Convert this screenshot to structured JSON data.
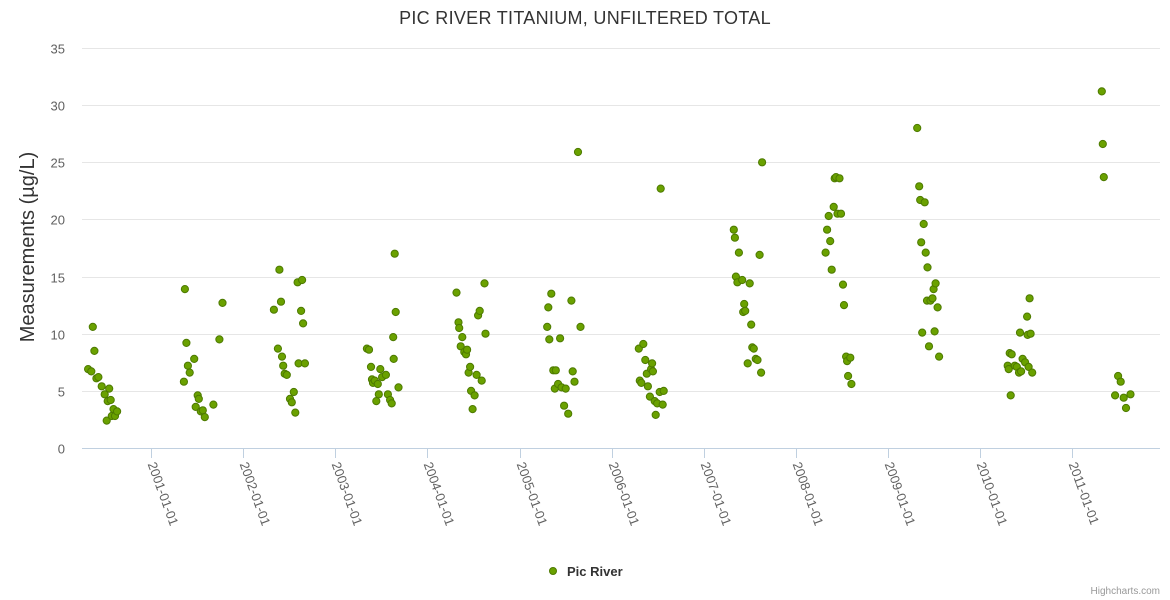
{
  "chart_data": {
    "type": "scatter",
    "title": "PIC RIVER TITANIUM, UNFILTERED TOTAL",
    "ylabel": "Measurements (µg/L)",
    "xlabel": "",
    "ylim": [
      0,
      35
    ],
    "yticks": [
      0,
      5,
      10,
      15,
      20,
      25,
      30,
      35
    ],
    "xlim": [
      "2000-04-01",
      "2011-12-15"
    ],
    "xticks": [
      "2001-01-01",
      "2002-01-01",
      "2003-01-01",
      "2004-01-01",
      "2005-01-01",
      "2006-01-01",
      "2007-01-01",
      "2008-01-01",
      "2009-01-01",
      "2010-01-01",
      "2011-01-01"
    ],
    "grid": "horizontal",
    "legend_position": "bottom-center",
    "series": [
      {
        "name": "Pic River",
        "color": "#6aa100",
        "stroke": "#4d7a00",
        "points": [
          [
            "2000-04-25",
            6.9
          ],
          [
            "2000-05-08",
            6.7
          ],
          [
            "2000-05-14",
            10.6
          ],
          [
            "2000-05-20",
            8.5
          ],
          [
            "2000-05-28",
            6.1
          ],
          [
            "2000-06-05",
            6.2
          ],
          [
            "2000-06-18",
            5.4
          ],
          [
            "2000-06-30",
            4.7
          ],
          [
            "2000-07-08",
            2.4
          ],
          [
            "2000-07-12",
            4.1
          ],
          [
            "2000-07-18",
            5.2
          ],
          [
            "2000-07-24",
            4.2
          ],
          [
            "2000-07-28",
            2.8
          ],
          [
            "2000-08-04",
            3.4
          ],
          [
            "2000-08-10",
            2.8
          ],
          [
            "2000-08-18",
            3.2
          ],
          [
            "2001-05-10",
            5.8
          ],
          [
            "2001-05-14",
            13.9
          ],
          [
            "2001-05-20",
            9.2
          ],
          [
            "2001-05-26",
            7.2
          ],
          [
            "2001-06-02",
            6.6
          ],
          [
            "2001-06-20",
            7.8
          ],
          [
            "2001-06-26",
            3.6
          ],
          [
            "2001-07-04",
            4.6
          ],
          [
            "2001-07-08",
            4.3
          ],
          [
            "2001-07-16",
            3.2
          ],
          [
            "2001-07-24",
            3.3
          ],
          [
            "2001-08-01",
            2.7
          ],
          [
            "2001-09-04",
            3.8
          ],
          [
            "2001-09-28",
            9.5
          ],
          [
            "2001-10-10",
            12.7
          ],
          [
            "2002-05-02",
            12.1
          ],
          [
            "2002-05-18",
            8.7
          ],
          [
            "2002-05-24",
            15.6
          ],
          [
            "2002-05-30",
            12.8
          ],
          [
            "2002-06-03",
            8.0
          ],
          [
            "2002-06-08",
            7.2
          ],
          [
            "2002-06-14",
            6.5
          ],
          [
            "2002-06-22",
            6.4
          ],
          [
            "2002-07-05",
            4.3
          ],
          [
            "2002-07-12",
            4.0
          ],
          [
            "2002-07-20",
            4.9
          ],
          [
            "2002-07-26",
            3.1
          ],
          [
            "2002-08-04",
            14.5
          ],
          [
            "2002-08-08",
            7.4
          ],
          [
            "2002-08-22",
            14.7
          ],
          [
            "2002-08-18",
            12.0
          ],
          [
            "2002-08-26",
            10.9
          ],
          [
            "2002-09-02",
            7.4
          ],
          [
            "2003-05-06",
            8.7
          ],
          [
            "2003-05-14",
            8.6
          ],
          [
            "2003-05-22",
            7.1
          ],
          [
            "2003-05-26",
            6.0
          ],
          [
            "2003-05-30",
            5.7
          ],
          [
            "2003-06-06",
            5.9
          ],
          [
            "2003-06-12",
            4.1
          ],
          [
            "2003-06-18",
            5.6
          ],
          [
            "2003-06-22",
            4.7
          ],
          [
            "2003-06-28",
            6.9
          ],
          [
            "2003-07-05",
            6.2
          ],
          [
            "2003-07-20",
            6.4
          ],
          [
            "2003-07-28",
            4.7
          ],
          [
            "2003-08-06",
            4.2
          ],
          [
            "2003-08-12",
            3.9
          ],
          [
            "2003-08-18",
            9.7
          ],
          [
            "2003-08-20",
            7.8
          ],
          [
            "2003-08-24",
            17.0
          ],
          [
            "2003-08-28",
            11.9
          ],
          [
            "2003-09-08",
            5.3
          ],
          [
            "2004-04-25",
            13.6
          ],
          [
            "2004-05-03",
            11.0
          ],
          [
            "2004-05-06",
            10.5
          ],
          [
            "2004-05-12",
            8.9
          ],
          [
            "2004-05-18",
            9.7
          ],
          [
            "2004-05-26",
            8.4
          ],
          [
            "2004-06-02",
            8.2
          ],
          [
            "2004-06-06",
            8.6
          ],
          [
            "2004-06-12",
            6.6
          ],
          [
            "2004-06-18",
            7.1
          ],
          [
            "2004-06-22",
            5.0
          ],
          [
            "2004-06-28",
            3.4
          ],
          [
            "2004-07-06",
            4.6
          ],
          [
            "2004-07-14",
            6.4
          ],
          [
            "2004-07-20",
            11.6
          ],
          [
            "2004-07-26",
            12.0
          ],
          [
            "2004-08-03",
            5.9
          ],
          [
            "2004-08-14",
            14.4
          ],
          [
            "2004-08-18",
            10.0
          ],
          [
            "2005-04-20",
            10.6
          ],
          [
            "2005-04-24",
            12.3
          ],
          [
            "2005-04-28",
            9.5
          ],
          [
            "2005-05-06",
            13.5
          ],
          [
            "2005-05-14",
            6.8
          ],
          [
            "2005-05-20",
            5.2
          ],
          [
            "2005-05-24",
            6.8
          ],
          [
            "2005-06-02",
            5.6
          ],
          [
            "2005-06-10",
            9.6
          ],
          [
            "2005-06-16",
            5.3
          ],
          [
            "2005-06-26",
            3.7
          ],
          [
            "2005-07-02",
            5.2
          ],
          [
            "2005-07-12",
            3.0
          ],
          [
            "2005-07-25",
            12.9
          ],
          [
            "2005-07-30",
            6.7
          ],
          [
            "2005-08-06",
            5.8
          ],
          [
            "2005-08-20",
            25.9
          ],
          [
            "2005-08-30",
            10.6
          ],
          [
            "2006-04-18",
            8.7
          ],
          [
            "2006-04-22",
            5.9
          ],
          [
            "2006-04-28",
            5.7
          ],
          [
            "2006-05-06",
            9.1
          ],
          [
            "2006-05-14",
            7.7
          ],
          [
            "2006-05-20",
            6.5
          ],
          [
            "2006-05-24",
            5.4
          ],
          [
            "2006-06-01",
            4.5
          ],
          [
            "2006-06-06",
            6.9
          ],
          [
            "2006-06-10",
            7.4
          ],
          [
            "2006-06-13",
            6.7
          ],
          [
            "2006-06-20",
            4.1
          ],
          [
            "2006-06-24",
            2.9
          ],
          [
            "2006-06-30",
            3.9
          ],
          [
            "2006-07-10",
            4.9
          ],
          [
            "2006-07-14",
            22.7
          ],
          [
            "2006-07-22",
            3.8
          ],
          [
            "2006-07-26",
            5.0
          ],
          [
            "2007-04-30",
            19.1
          ],
          [
            "2007-05-04",
            18.4
          ],
          [
            "2007-05-08",
            15.0
          ],
          [
            "2007-05-14",
            14.5
          ],
          [
            "2007-05-20",
            17.1
          ],
          [
            "2007-06-02",
            14.7
          ],
          [
            "2007-06-06",
            11.9
          ],
          [
            "2007-06-10",
            12.6
          ],
          [
            "2007-06-14",
            12.0
          ],
          [
            "2007-06-24",
            7.4
          ],
          [
            "2007-07-02",
            14.4
          ],
          [
            "2007-07-08",
            10.8
          ],
          [
            "2007-07-12",
            8.8
          ],
          [
            "2007-07-18",
            8.7
          ],
          [
            "2007-07-26",
            7.8
          ],
          [
            "2007-08-02",
            7.7
          ],
          [
            "2007-08-10",
            16.9
          ],
          [
            "2007-08-16",
            6.6
          ],
          [
            "2007-08-20",
            25.0
          ],
          [
            "2008-04-28",
            17.1
          ],
          [
            "2008-05-04",
            19.1
          ],
          [
            "2008-05-10",
            20.3
          ],
          [
            "2008-05-16",
            18.1
          ],
          [
            "2008-05-22",
            15.6
          ],
          [
            "2008-05-30",
            21.1
          ],
          [
            "2008-06-03",
            23.6
          ],
          [
            "2008-06-08",
            23.7
          ],
          [
            "2008-06-14",
            20.5
          ],
          [
            "2008-06-22",
            23.6
          ],
          [
            "2008-06-28",
            20.5
          ],
          [
            "2008-07-06",
            14.3
          ],
          [
            "2008-07-10",
            12.5
          ],
          [
            "2008-07-18",
            8.0
          ],
          [
            "2008-07-22",
            7.6
          ],
          [
            "2008-07-26",
            6.3
          ],
          [
            "2008-08-04",
            7.9
          ],
          [
            "2008-08-08",
            5.6
          ],
          [
            "2009-04-26",
            28.0
          ],
          [
            "2009-05-04",
            22.9
          ],
          [
            "2009-05-08",
            21.7
          ],
          [
            "2009-05-12",
            18.0
          ],
          [
            "2009-05-16",
            10.1
          ],
          [
            "2009-05-22",
            19.6
          ],
          [
            "2009-05-26",
            21.5
          ],
          [
            "2009-05-30",
            17.1
          ],
          [
            "2009-06-06",
            15.8
          ],
          [
            "2009-06-04",
            12.9
          ],
          [
            "2009-06-12",
            8.9
          ],
          [
            "2009-06-18",
            12.9
          ],
          [
            "2009-06-26",
            13.1
          ],
          [
            "2009-06-30",
            13.9
          ],
          [
            "2009-07-04",
            10.2
          ],
          [
            "2009-07-08",
            14.4
          ],
          [
            "2009-07-16",
            12.3
          ],
          [
            "2009-07-22",
            8.0
          ],
          [
            "2010-04-20",
            7.2
          ],
          [
            "2010-04-24",
            6.9
          ],
          [
            "2010-04-28",
            8.3
          ],
          [
            "2010-05-02",
            4.6
          ],
          [
            "2010-05-06",
            8.2
          ],
          [
            "2010-05-18",
            7.2
          ],
          [
            "2010-05-26",
            7.1
          ],
          [
            "2010-06-04",
            6.6
          ],
          [
            "2010-06-08",
            10.1
          ],
          [
            "2010-06-12",
            6.7
          ],
          [
            "2010-06-18",
            7.8
          ],
          [
            "2010-06-28",
            7.5
          ],
          [
            "2010-07-06",
            11.5
          ],
          [
            "2010-07-08",
            9.9
          ],
          [
            "2010-07-12",
            7.1
          ],
          [
            "2010-07-16",
            13.1
          ],
          [
            "2010-07-20",
            10.0
          ],
          [
            "2010-07-26",
            6.6
          ],
          [
            "2011-04-28",
            31.2
          ],
          [
            "2011-05-02",
            26.6
          ],
          [
            "2011-05-06",
            23.7
          ],
          [
            "2011-06-20",
            4.6
          ],
          [
            "2011-07-02",
            6.3
          ],
          [
            "2011-07-12",
            5.8
          ],
          [
            "2011-07-24",
            4.4
          ],
          [
            "2011-08-02",
            3.5
          ],
          [
            "2011-08-20",
            4.7
          ]
        ]
      }
    ]
  },
  "credits": "Highcharts.com"
}
